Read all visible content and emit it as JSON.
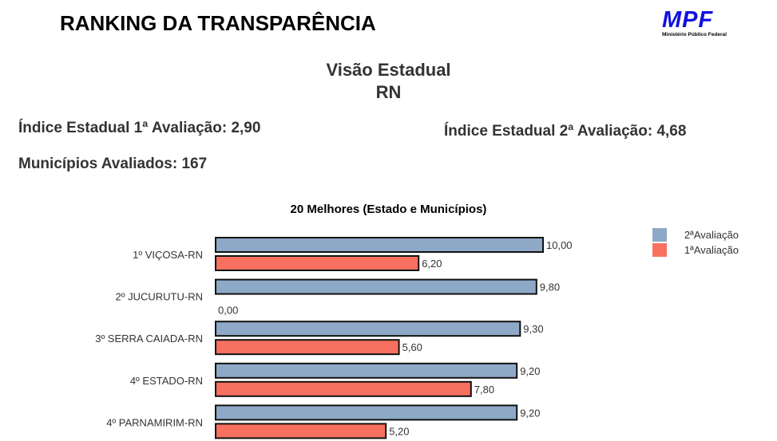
{
  "header": {
    "title": "RANKING DA TRANSPARÊNCIA",
    "logo_text": "MPF",
    "logo_subtext": "Ministério Público Federal"
  },
  "view": {
    "line1": "Visão Estadual",
    "line2": "RN"
  },
  "kpis": {
    "first": "Índice Estadual 1ª Avaliação: 2,90",
    "second": "Índice Estadual 2ª Avaliação: 4,68",
    "count": "Municípios Avaliados: 167"
  },
  "chart_data": {
    "type": "bar",
    "orientation": "horizontal",
    "title": "20 Melhores (Estado e Municípios)",
    "categories": [
      "1º VIÇOSA-RN",
      "2º JUCURUTU-RN",
      "3º SERRA CAIADA-RN",
      "4º ESTADO-RN",
      "4º PARNAMIRIM-RN"
    ],
    "series": [
      {
        "name": "2ªAvaliação",
        "color": "#8EA9C8",
        "values": [
          10.0,
          9.8,
          9.3,
          9.2,
          9.2
        ],
        "labels": [
          "10,00",
          "9,80",
          "9,30",
          "9,20",
          "9,20"
        ]
      },
      {
        "name": "1ªAvaliação",
        "color": "#F87060",
        "values": [
          6.2,
          0.0,
          5.6,
          7.8,
          5.2
        ],
        "labels": [
          "6,20",
          "0,00",
          "5,60",
          "7,80",
          "5,20"
        ]
      }
    ],
    "xlim": [
      0,
      10
    ],
    "grid": false,
    "legend": "top-right"
  }
}
